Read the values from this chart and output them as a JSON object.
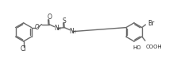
{
  "line_color": "#6a6a6a",
  "text_color": "#333333",
  "lw": 1.0,
  "fig_width": 2.42,
  "fig_height": 0.83,
  "dpi": 100,
  "xlim": [
    0,
    10.5
  ],
  "ylim": [
    0.2,
    3.8
  ]
}
